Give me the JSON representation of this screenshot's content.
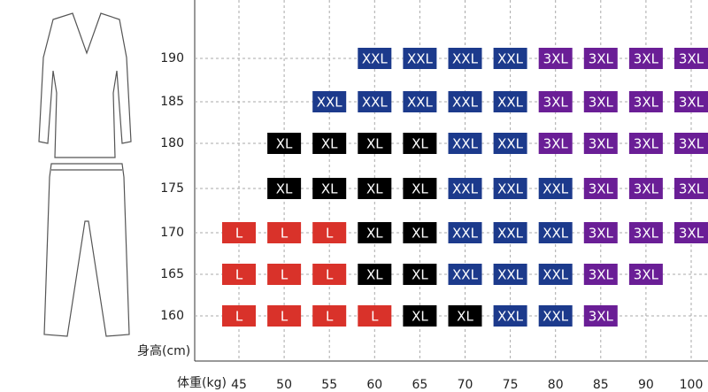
{
  "height_label": "身高(cm)",
  "weight_label": "体重(kg)",
  "weights": [
    45,
    50,
    55,
    60,
    65,
    70,
    75,
    80,
    85,
    90,
    100
  ],
  "heights": [
    190,
    185,
    180,
    175,
    170,
    165,
    160
  ],
  "colors": {
    "L": "#d9322a",
    "XL": "#000000",
    "XXL": "#1c3a8c",
    "3XL": "#6a1e96"
  },
  "rows": [
    [
      null,
      null,
      null,
      "XXL",
      "XXL",
      "XXL",
      "XXL",
      "3XL",
      "3XL",
      "3XL",
      "3XL"
    ],
    [
      null,
      null,
      "XXL",
      "XXL",
      "XXL",
      "XXL",
      "XXL",
      "3XL",
      "3XL",
      "3XL",
      "3XL"
    ],
    [
      null,
      "XL",
      "XL",
      "XL",
      "XL",
      "XXL",
      "XXL",
      "3XL",
      "3XL",
      "3XL",
      "3XL"
    ],
    [
      null,
      "XL",
      "XL",
      "XL",
      "XL",
      "XXL",
      "XXL",
      "XXL",
      "3XL",
      "3XL",
      "3XL"
    ],
    [
      "L",
      "L",
      "L",
      "XL",
      "XL",
      "XXL",
      "XXL",
      "XXL",
      "3XL",
      "3XL",
      "3XL"
    ],
    [
      "L",
      "L",
      "L",
      "XL",
      "XL",
      "XXL",
      "XXL",
      "XXL",
      "3XL",
      "3XL",
      null
    ],
    [
      "L",
      "L",
      "L",
      "L",
      "XL",
      "XL",
      "XXL",
      "XXL",
      "3XL",
      null,
      null
    ]
  ]
}
